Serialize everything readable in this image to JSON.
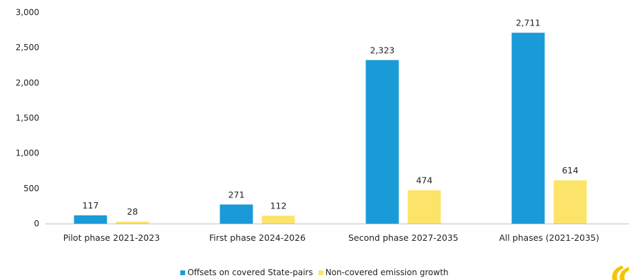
{
  "chart_data": {
    "type": "bar",
    "title": "",
    "xlabel": "",
    "ylabel": "",
    "ylim": [
      0,
      3000
    ],
    "yticks": [
      0,
      500,
      1000,
      1500,
      2000,
      2500,
      3000
    ],
    "ytick_labels": [
      "0",
      "500",
      "1,000",
      "1,500",
      "2,000",
      "2,500",
      "3,000"
    ],
    "grid": false,
    "legend_position": "bottom",
    "categories": [
      "Pilot phase 2021-2023",
      "First phase 2024-2026",
      "Second phase 2027-2035",
      "All phases (2021-2035)"
    ],
    "series": [
      {
        "name": "Offsets on covered State-pairs",
        "color": "#1a9bd7",
        "values": [
          117,
          271,
          2323,
          2711
        ],
        "labels": [
          "117",
          "271",
          "2,323",
          "2,711"
        ]
      },
      {
        "name": "Non-covered emission growth",
        "color": "#fce46a",
        "values": [
          28,
          112,
          474,
          614
        ],
        "labels": [
          "28",
          "112",
          "474",
          "614"
        ]
      }
    ]
  },
  "logo": {
    "icon": "partial-logo-icon",
    "color": "#f5c400"
  }
}
